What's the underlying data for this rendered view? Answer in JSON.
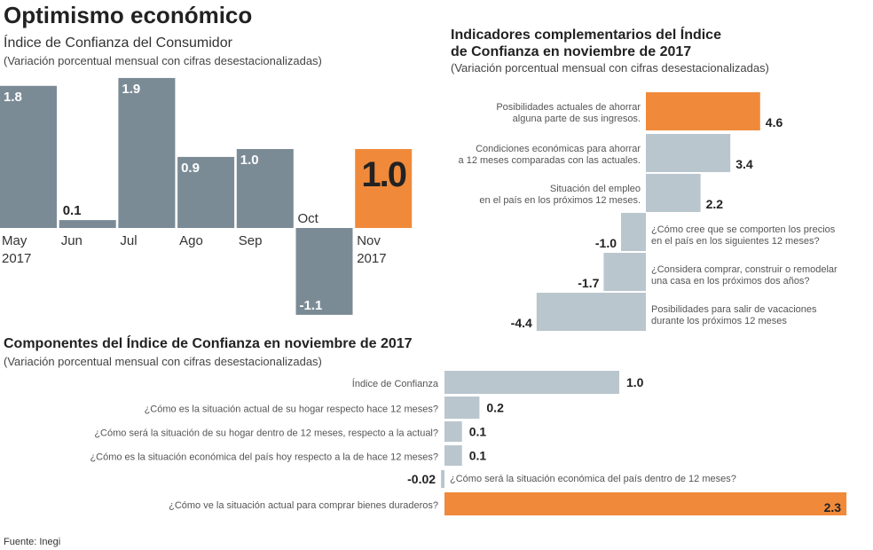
{
  "title": "Optimismo económico",
  "source": "Fuente: Inegi",
  "colors": {
    "dark_bar": "#7b8b96",
    "light_bar": "#bac6ce",
    "highlight": "#f08a3a"
  },
  "chart_data": [
    {
      "type": "bar",
      "title": "Índice de Confianza del Consumidor",
      "subtitle": "(Variación porcentual mensual con cifras desestacionalizadas)",
      "categories": [
        [
          "May",
          "2017"
        ],
        [
          "Jun"
        ],
        [
          "Jul"
        ],
        [
          "Ago"
        ],
        [
          "Sep"
        ],
        [
          "Oct"
        ],
        [
          "Nov",
          "2017"
        ]
      ],
      "values": [
        1.8,
        0.1,
        1.9,
        0.9,
        1.0,
        -1.1,
        1.0
      ],
      "value_labels": [
        "1.8",
        "0.1",
        "1.9",
        "0.9",
        "1.0",
        "-1.1",
        "1.0"
      ],
      "highlight_index": 6
    },
    {
      "type": "bar",
      "orientation": "horizontal",
      "title": [
        "Indicadores complementarios del Índice",
        "de Confianza en noviembre de 2017"
      ],
      "subtitle": "(Variación porcentual  mensual con cifras desestacionalizadas)",
      "labels": [
        [
          "Posibilidades actuales de ahorrar",
          "alguna parte de sus ingresos."
        ],
        [
          "Condiciones económicas para ahorrar",
          "a 12 meses comparadas con las actuales."
        ],
        [
          "Situación del empleo",
          "en el país en los próximos 12 meses."
        ],
        [
          "¿Cómo cree que se comporten los precios",
          "en el país en los siguientes 12 meses?"
        ],
        [
          "¿Considera comprar, construir o remodelar",
          "una casa en los próximos dos años?"
        ],
        [
          "Posibilidades para salir de vacaciones",
          "durante los próximos 12 meses"
        ]
      ],
      "values": [
        4.6,
        3.4,
        2.2,
        -1.0,
        -1.7,
        -4.4
      ],
      "value_labels": [
        "4.6",
        "3.4",
        "2.2",
        "-1.0",
        "-1.7",
        "-4.4"
      ],
      "highlight_index": 0
    },
    {
      "type": "bar",
      "orientation": "horizontal",
      "title": "Componentes del Índice de Confianza en noviembre de 2017",
      "subtitle": "(Variación porcentual mensual con cifras desestacionalizadas)",
      "labels": [
        "Índice de Confianza",
        "¿Cómo es la situación actual de su hogar respecto hace 12 meses?",
        "¿Cómo será la situación de su hogar dentro de 12 meses, respecto a la actual?",
        "¿Cómo es la situación económica del país hoy respecto a la de hace 12 meses?",
        "¿Cómo será la situación económica del país dentro de 12 meses?",
        "¿Cómo ve la situación actual para comprar bienes duraderos?"
      ],
      "values": [
        1.0,
        0.2,
        0.1,
        0.1,
        -0.02,
        2.3
      ],
      "value_labels": [
        "1.0",
        "0.2",
        "0.1",
        "0.1",
        "-0.02",
        "2.3"
      ],
      "highlight_index": 5
    }
  ]
}
